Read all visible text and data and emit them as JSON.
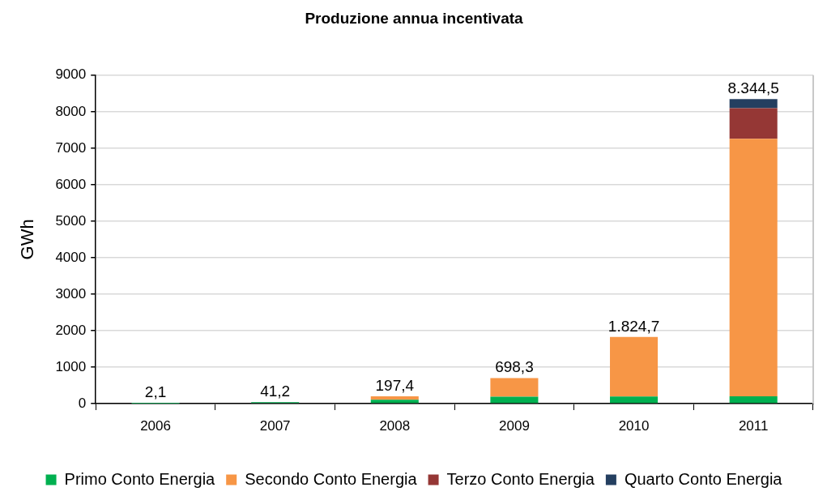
{
  "chart_data": {
    "type": "bar",
    "title": "Produzione annua incentivata",
    "ylabel": "GWh",
    "categories": [
      "2006",
      "2007",
      "2008",
      "2009",
      "2010",
      "2011"
    ],
    "series": [
      {
        "name": "Primo Conto Energia",
        "color": "#00b050",
        "values": [
          2.1,
          41.2,
          105,
          190,
          195,
          200
        ]
      },
      {
        "name": "Secondo Conto Energia",
        "color": "#f79646",
        "values": [
          null,
          null,
          92.4,
          508.3,
          1629.7,
          7060
        ]
      },
      {
        "name": "Terzo Conto Energia",
        "color": "#953735",
        "values": [
          null,
          null,
          null,
          null,
          null,
          835
        ]
      },
      {
        "name": "Quarto Conto Energia",
        "color": "#243f60",
        "values": [
          null,
          null,
          null,
          null,
          null,
          249.5
        ]
      }
    ],
    "stacked": true,
    "totals": [
      "2,1",
      "41,2",
      "197,4",
      "698,3",
      "1.824,7",
      "8.344,5"
    ],
    "ylim": [
      0,
      9000
    ],
    "yticks": [
      0,
      1000,
      2000,
      3000,
      4000,
      5000,
      6000,
      7000,
      8000,
      9000
    ],
    "grid": "y",
    "legend": "bottom"
  }
}
